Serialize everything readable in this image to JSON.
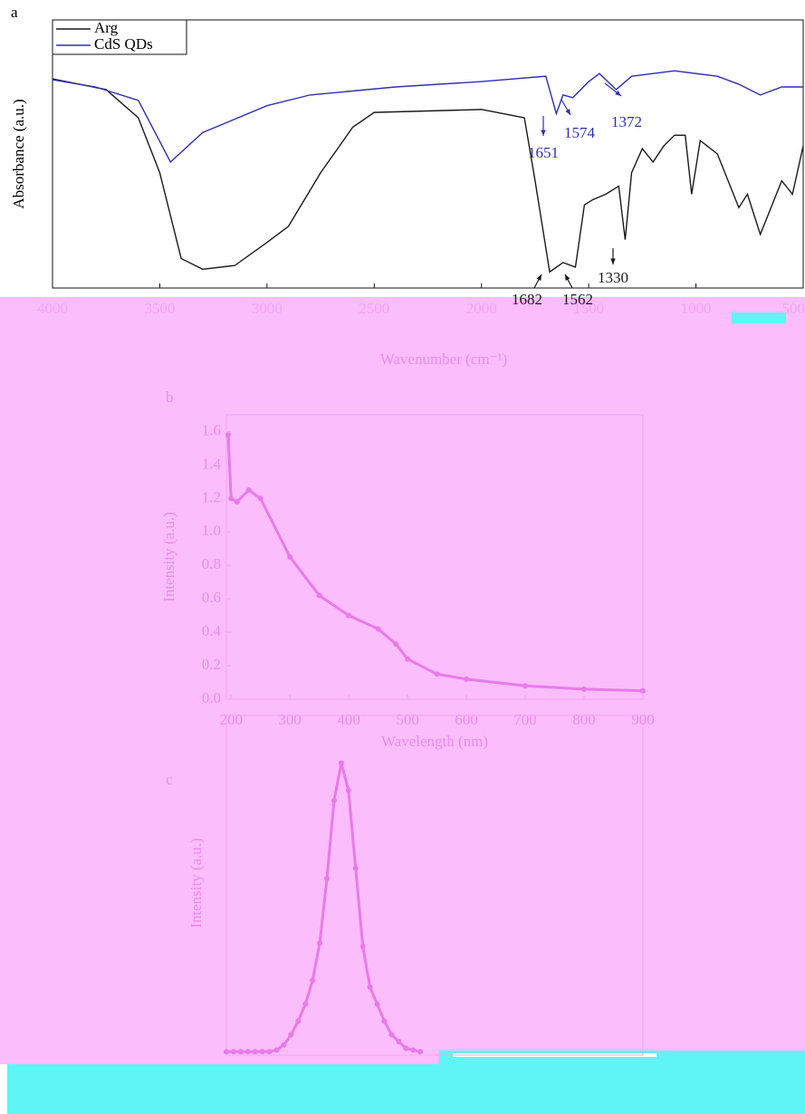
{
  "chart_data": [
    {
      "type": "line",
      "panel": "a",
      "ylabel": "Absorbance (a.u.)",
      "xlabel": "Wavenumber (cm⁻¹)",
      "xlim": [
        4000,
        500
      ],
      "ylim": [
        0,
        100
      ],
      "xticks": [
        4000,
        3500,
        3000,
        2500,
        2000,
        1500,
        1000,
        500
      ],
      "legend": "upper left",
      "series": [
        {
          "name": "Arg",
          "color": "#1a1a1a",
          "x": [
            4000,
            3750,
            3600,
            3500,
            3400,
            3300,
            3150,
            3000,
            2900,
            2750,
            2600,
            2500,
            2000,
            1800,
            1750,
            1682,
            1620,
            1562,
            1520,
            1480,
            1420,
            1360,
            1330,
            1300,
            1250,
            1200,
            1150,
            1100,
            1050,
            1020,
            980,
            900,
            800,
            760,
            700,
            600,
            550,
            500
          ],
          "values": [
            78,
            74,
            63.5,
            43,
            11,
            7,
            8.4,
            17,
            23,
            43,
            60,
            65.5,
            66.6,
            63.5,
            40,
            6,
            9.5,
            7.8,
            31,
            33,
            35,
            38,
            18,
            43,
            52,
            47,
            53,
            57,
            57,
            35,
            55,
            50,
            30,
            35,
            20,
            40,
            35,
            53
          ]
        },
        {
          "name": "CdS QDs",
          "color": "#2f2fb8",
          "x": [
            4000,
            3800,
            3600,
            3450,
            3300,
            3000,
            2800,
            2400,
            2000,
            1700,
            1651,
            1620,
            1574,
            1500,
            1450,
            1372,
            1300,
            1100,
            900,
            800,
            700,
            600,
            500
          ],
          "values": [
            77.7,
            75,
            70,
            47,
            58,
            68,
            72,
            75,
            77,
            79,
            65,
            72,
            71,
            77,
            80,
            74,
            79,
            81,
            79,
            76,
            72,
            75,
            75
          ]
        }
      ],
      "annotations": [
        {
          "x": 1651,
          "text": "1651",
          "color": "#2f2fb8"
        },
        {
          "x": 1574,
          "text": "1574",
          "color": "#2f2fb8"
        },
        {
          "x": 1372,
          "text": "1372",
          "color": "#2f2fb8"
        },
        {
          "x": 1682,
          "text": "1682",
          "color": "#1a1a1a"
        },
        {
          "x": 1562,
          "text": "1562",
          "color": "#1a1a1a"
        },
        {
          "x": 1330,
          "text": "1330",
          "color": "#1a1a1a"
        }
      ]
    },
    {
      "type": "line",
      "panel": "b",
      "ylabel": "Intensity (a.u.)",
      "xlabel": "Wavelength (nm)",
      "xlim": [
        192,
        900
      ],
      "ylim": [
        0,
        1.7
      ],
      "xticks": [
        200,
        300,
        400,
        500,
        600,
        700,
        800,
        900
      ],
      "yticks": [
        {
          "value": 0,
          "label": "0.0"
        },
        0.2,
        0.4,
        0.6,
        0.8,
        {
          "value": 1,
          "label": "1.0"
        },
        1.2,
        1.4,
        1.6
      ],
      "series": [
        {
          "color": "#e97ae9",
          "x": [
            195,
            200,
            210,
            230,
            250,
            300,
            350,
            400,
            450,
            480,
            500,
            550,
            600,
            700,
            800,
            900
          ],
          "values": [
            1.58,
            1.2,
            1.18,
            1.25,
            1.2,
            0.85,
            0.62,
            0.5,
            0.42,
            0.33,
            0.24,
            0.15,
            0.12,
            0.08,
            0.06,
            0.05
          ]
        }
      ]
    },
    {
      "type": "line",
      "panel": "c",
      "ylabel": "Intensity (a.u.)",
      "xlim": [
        0,
        58
      ],
      "ylim": [
        0,
        100
      ],
      "series": [
        {
          "color": "#e97ae9",
          "x": [
            0,
            1,
            2,
            3,
            4,
            5,
            6,
            7,
            8,
            9,
            10,
            11,
            12,
            13,
            14,
            15,
            16,
            17,
            18,
            19,
            20,
            21,
            22,
            23,
            24,
            25,
            26,
            27
          ],
          "values": [
            1,
            1,
            1,
            1,
            1,
            1,
            1,
            1.5,
            3,
            6,
            10,
            15,
            22,
            33,
            52,
            75,
            86,
            78,
            55,
            32,
            20,
            15,
            10,
            6,
            4,
            2,
            1.5,
            1
          ]
        }
      ]
    }
  ]
}
